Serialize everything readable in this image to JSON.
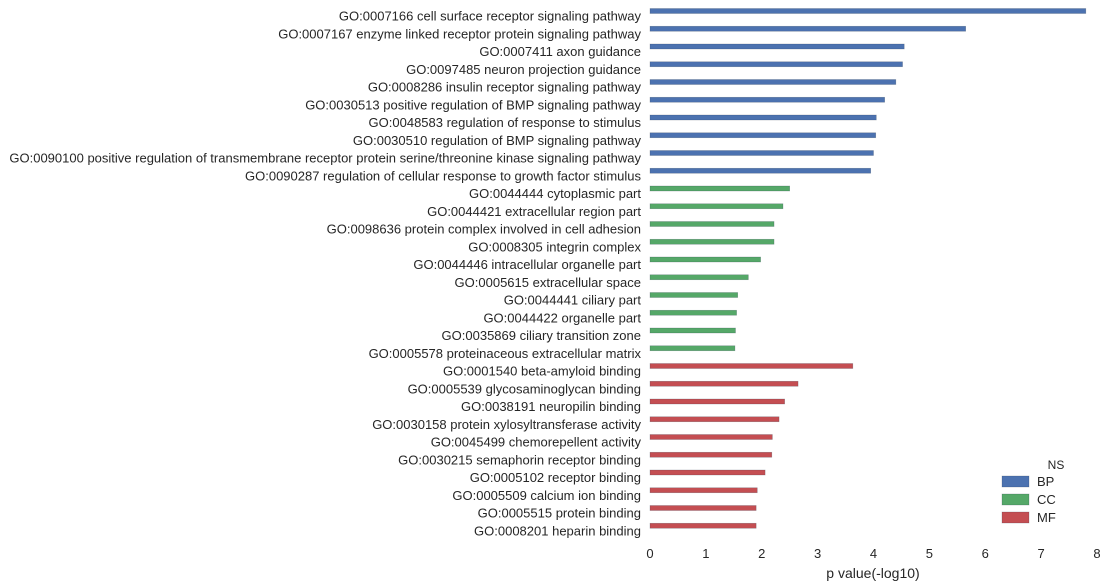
{
  "chart_data": {
    "type": "bar",
    "orientation": "horizontal",
    "xlabel": "p value(-log10)",
    "ylabel": "",
    "xlim": [
      0,
      8
    ],
    "xticks": [
      0,
      1,
      2,
      3,
      4,
      5,
      6,
      7,
      8
    ],
    "grid": false,
    "legend": {
      "title": "NS",
      "placement": "bottom-right"
    },
    "series": [
      {
        "name": "BP",
        "color": "#4c72b0",
        "categories": [
          "GO:0007166 cell surface receptor signaling pathway",
          "GO:0007167 enzyme linked receptor protein signaling pathway",
          "GO:0007411 axon guidance",
          "GO:0097485 neuron projection guidance",
          "GO:0008286 insulin receptor signaling pathway",
          "GO:0030513 positive regulation of BMP signaling pathway",
          "GO:0048583 regulation of response to stimulus",
          "GO:0030510 regulation of BMP signaling pathway",
          "GO:0090100 positive regulation of transmembrane receptor protein serine/threonine kinase signaling pathway",
          "GO:0090287 regulation of cellular response to growth factor stimulus"
        ],
        "values": [
          7.8,
          5.65,
          4.55,
          4.52,
          4.4,
          4.2,
          4.05,
          4.04,
          4.0,
          3.95
        ]
      },
      {
        "name": "CC",
        "color": "#55a868",
        "categories": [
          "GO:0044444 cytoplasmic part",
          "GO:0044421 extracellular region part",
          "GO:0098636 protein complex involved in cell adhesion",
          "GO:0008305 integrin complex",
          "GO:0044446 intracellular organelle part",
          "GO:0005615 extracellular space",
          "GO:0044441 ciliary part",
          "GO:0044422 organelle part",
          "GO:0035869 ciliary transition zone",
          "GO:0005578 proteinaceous extracellular matrix"
        ],
        "values": [
          2.5,
          2.38,
          2.22,
          2.22,
          1.98,
          1.76,
          1.57,
          1.55,
          1.53,
          1.52
        ]
      },
      {
        "name": "MF",
        "color": "#c44e52",
        "categories": [
          "GO:0001540 beta-amyloid binding",
          "GO:0005539 glycosaminoglycan binding",
          "GO:0038191 neuropilin binding",
          "GO:0030158 protein xylosyltransferase activity",
          "GO:0045499 chemorepellent activity",
          "GO:0030215 semaphorin receptor binding",
          "GO:0005102 receptor binding",
          "GO:0005509 calcium ion binding",
          "GO:0005515 protein binding",
          "GO:0008201 heparin binding"
        ],
        "values": [
          3.63,
          2.65,
          2.41,
          2.31,
          2.19,
          2.18,
          2.06,
          1.92,
          1.9,
          1.9
        ]
      }
    ]
  }
}
